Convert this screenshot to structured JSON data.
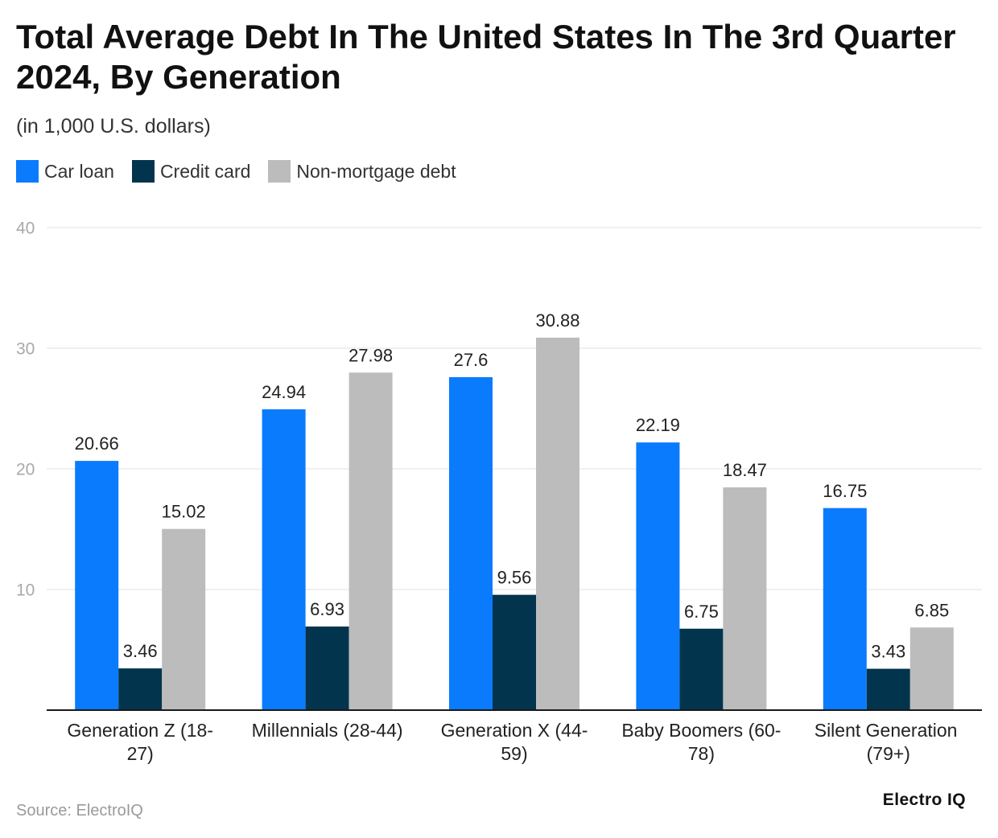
{
  "chart_data": {
    "type": "bar",
    "title": "Total Average Debt In The United States In The 3rd Quarter 2024, By Generation",
    "subtitle": "(in 1,000 U.S. dollars)",
    "xlabel": "",
    "ylabel": "",
    "categories": [
      "Generation Z (18-27)",
      "Millennials (28-44)",
      "Generation X (44-59)",
      "Baby Boomers (60-78)",
      "Silent Generation (79+)"
    ],
    "series": [
      {
        "name": "Car loan",
        "color": "#0b7bfe",
        "values": [
          20.66,
          24.94,
          27.6,
          22.19,
          16.75
        ]
      },
      {
        "name": "Credit card",
        "color": "#02344d",
        "values": [
          3.46,
          6.93,
          9.56,
          6.75,
          3.43
        ]
      },
      {
        "name": "Non-mortgage debt",
        "color": "#bcbcbc",
        "values": [
          15.02,
          27.98,
          30.88,
          18.47,
          6.85
        ]
      }
    ],
    "ylim": [
      0,
      40
    ],
    "yticks": [
      10,
      20,
      30,
      40
    ],
    "grid": true,
    "legend_position": "top-left"
  },
  "footer": {
    "source": "Source: ElectroIQ",
    "brand": "Electro IQ"
  }
}
